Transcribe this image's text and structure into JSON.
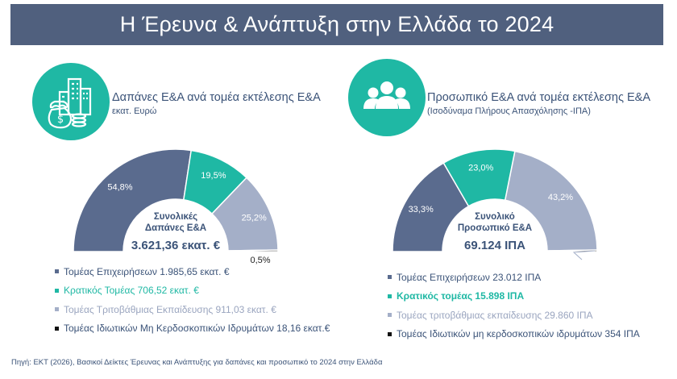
{
  "header": {
    "title": "Η Έρευνα & Ανάπτυξη στην Ελλάδα το 2024"
  },
  "colors": {
    "banner": "#50607e",
    "teal": "#1fb8a4",
    "text": "#3b5378",
    "series": [
      "#5a6b8e",
      "#1fb8a4",
      "#a4afc8",
      "#111111"
    ]
  },
  "left_panel": {
    "icon": "money-buildings-icon",
    "title": "Δαπάνες Ε&Α ανά τομέα εκτέλεσης Ε&Α",
    "subtitle": "εκατ. Ευρώ",
    "center_label_1": "Συνολικές",
    "center_label_2": "Δαπάνες Ε&Α",
    "total": "3.621,36 εκατ. €",
    "legend": [
      "Τομέας Επιχειρήσεων 1.985,65 εκατ. €",
      "Κρατικός Τομέας 706,52 εκατ. €",
      "Τομέας Τριτοβάθμιας Εκπαίδευσης 911,03 εκατ. €",
      "Τομέας Ιδιωτικών Μη Κερδοσκοπικών Ιδρυμάτων 18,16 εκατ.€"
    ]
  },
  "right_panel": {
    "icon": "people-group-icon",
    "title": "Προσωπικό Ε&Α ανά τομέα εκτέλεσης Ε&Α",
    "subtitle": "(Ισοδύναμα Πλήρους Απασχόλησης -ΙΠΑ)",
    "center_label_1": "Συνολικό",
    "center_label_2": "Προσωπικό Ε&Α",
    "total": "69.124 ΙΠΑ",
    "legend": [
      "Τομέας Επιχειρήσεων 23.012 ΙΠΑ",
      "Κρατικός τομέας 15.898 ΙΠΑ",
      "Τομέας τριτοβάθμιας εκπαίδευσης 29.860 ΙΠΑ",
      "Τομέας Ιδιωτικών μη κερδοσκοπικών ιδρυμάτων 354 ΙΠΑ"
    ]
  },
  "chart_data": [
    {
      "type": "pie",
      "shape": "half-donut",
      "categories": [
        "Τομέας Επιχειρήσεων",
        "Κρατικός Τομέας",
        "Τομέας Τριτοβάθμιας Εκπαίδευσης",
        "Τομέας Ιδιωτικών Μη Κερδοσκοπικών Ιδρυμάτων"
      ],
      "values": [
        1985.65,
        706.52,
        911.03,
        18.16
      ],
      "data_labels": [
        "54,8%",
        "19,5%",
        "25,2%",
        "0,5%"
      ],
      "legend_placement": "bottom"
    },
    {
      "type": "pie",
      "shape": "half-donut",
      "categories": [
        "Τομέας Επιχειρήσεων",
        "Κρατικός τομέας",
        "Τομέας τριτοβάθμιας εκπαίδευσης",
        "Τομέας Ιδιωτικών μη κερδοσκοπικών ιδρυμάτων"
      ],
      "values": [
        23012,
        15898,
        29860,
        354
      ],
      "data_labels": [
        "33,3%",
        "23,0%",
        "43,2%",
        ""
      ],
      "legend_placement": "bottom"
    }
  ],
  "source": "Πηγή: ΕΚΤ (2026), Βασικοί Δείκτες Έρευνας και Ανάπτυξης για δαπάνες και προσωπικό το 2024 στην Ελλάδα"
}
